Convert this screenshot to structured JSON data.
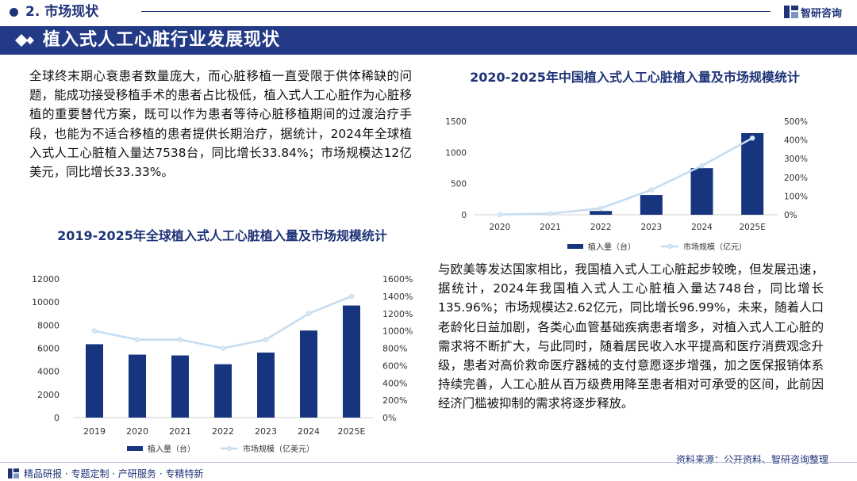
{
  "header": {
    "section_title": "2. 市场现状",
    "logo_text": "智研咨询"
  },
  "banner": {
    "title": "植入式人工心脏行业发展现状"
  },
  "paragraphs": {
    "global": "全球终末期心衰患者数量庞大，而心脏移植一直受限于供体稀缺的问题，能成功接受移植手术的患者占比极低，植入式人工心脏作为心脏移植的重要替代方案，既可以作为患者等待心脏移植期间的过渡治疗手段，也能为不适合移植的患者提供长期治疗，据统计，2024年全球植入式人工心脏植入量达7538台，同比增长33.84%；市场规模达12亿美元，同比增长33.33%。",
    "china": "与欧美等发达国家相比，我国植入式人工心脏起步较晚，但发展迅速，据统计，2024年我国植入式人工心脏植入量达748台，同比增长135.96%；市场规模达2.62亿元，同比增长96.99%，未来，随着人口老龄化日益加剧，各类心血管基础疾病患者增多，对植入式人工心脏的需求将不断扩大，与此同时，随着居民收入水平提高和医疗消费观念升级，患者对高价救命医疗器械的支付意愿逐步增强，加之医保报销体系持续完善，人工心脏从百万级费用降至患者相对可承受的区间，此前因经济门槛被抑制的需求将逐步释放。"
  },
  "footer": {
    "source": "资料来源：公开资料、智研咨询整理",
    "tagline": "精品研报 · 专题定制 · 产研服务 · 专精特新"
  },
  "colors": {
    "navy": "#1e3378",
    "bar": "#17347f",
    "line": "#c5dcef"
  },
  "chart_data": [
    {
      "type": "bar",
      "title": "2019-2025年全球植入式人工心脏植入量及市场规模统计",
      "categories": [
        "2019",
        "2020",
        "2021",
        "2022",
        "2023",
        "2024",
        "2025E"
      ],
      "series": [
        {
          "name": "植入量（台）",
          "type": "bar",
          "axis": "left",
          "values": [
            6350,
            5450,
            5380,
            4620,
            5630,
            7538,
            9700
          ]
        },
        {
          "name": "市场规模（亿美元）",
          "type": "line",
          "axis": "right",
          "values": [
            10,
            9,
            9,
            8,
            9,
            12,
            14
          ]
        }
      ],
      "left_axis": {
        "ylim": [
          0,
          12000
        ],
        "ticks": [
          "0",
          "2000",
          "4000",
          "6000",
          "8000",
          "10000",
          "12000"
        ]
      },
      "right_axis": {
        "ylim": [
          0,
          16
        ],
        "ticks": [
          "0%",
          "200%",
          "400%",
          "600%",
          "800%",
          "1000%",
          "1200%",
          "1400%",
          "1600%"
        ]
      },
      "legend": "bottom"
    },
    {
      "type": "bar",
      "title": "2020-2025年中国植入式人工心脏植入量及市场规模统计",
      "categories": [
        "2020",
        "2021",
        "2022",
        "2023",
        "2024",
        "2025E"
      ],
      "series": [
        {
          "name": "植入量（台）",
          "type": "bar",
          "axis": "left",
          "values": [
            0,
            0,
            60,
            317,
            748,
            1310
          ]
        },
        {
          "name": "市场规模（亿元）",
          "type": "line",
          "axis": "right",
          "values": [
            0.01,
            0.06,
            0.35,
            1.33,
            2.62,
            4.1
          ]
        }
      ],
      "left_axis": {
        "ylim": [
          0,
          1500
        ],
        "ticks": [
          "0",
          "500",
          "1000",
          "1500"
        ]
      },
      "right_axis": {
        "ylim": [
          0,
          5
        ],
        "ticks": [
          "0%",
          "100%",
          "200%",
          "300%",
          "400%",
          "500%"
        ]
      },
      "legend": "bottom"
    }
  ]
}
